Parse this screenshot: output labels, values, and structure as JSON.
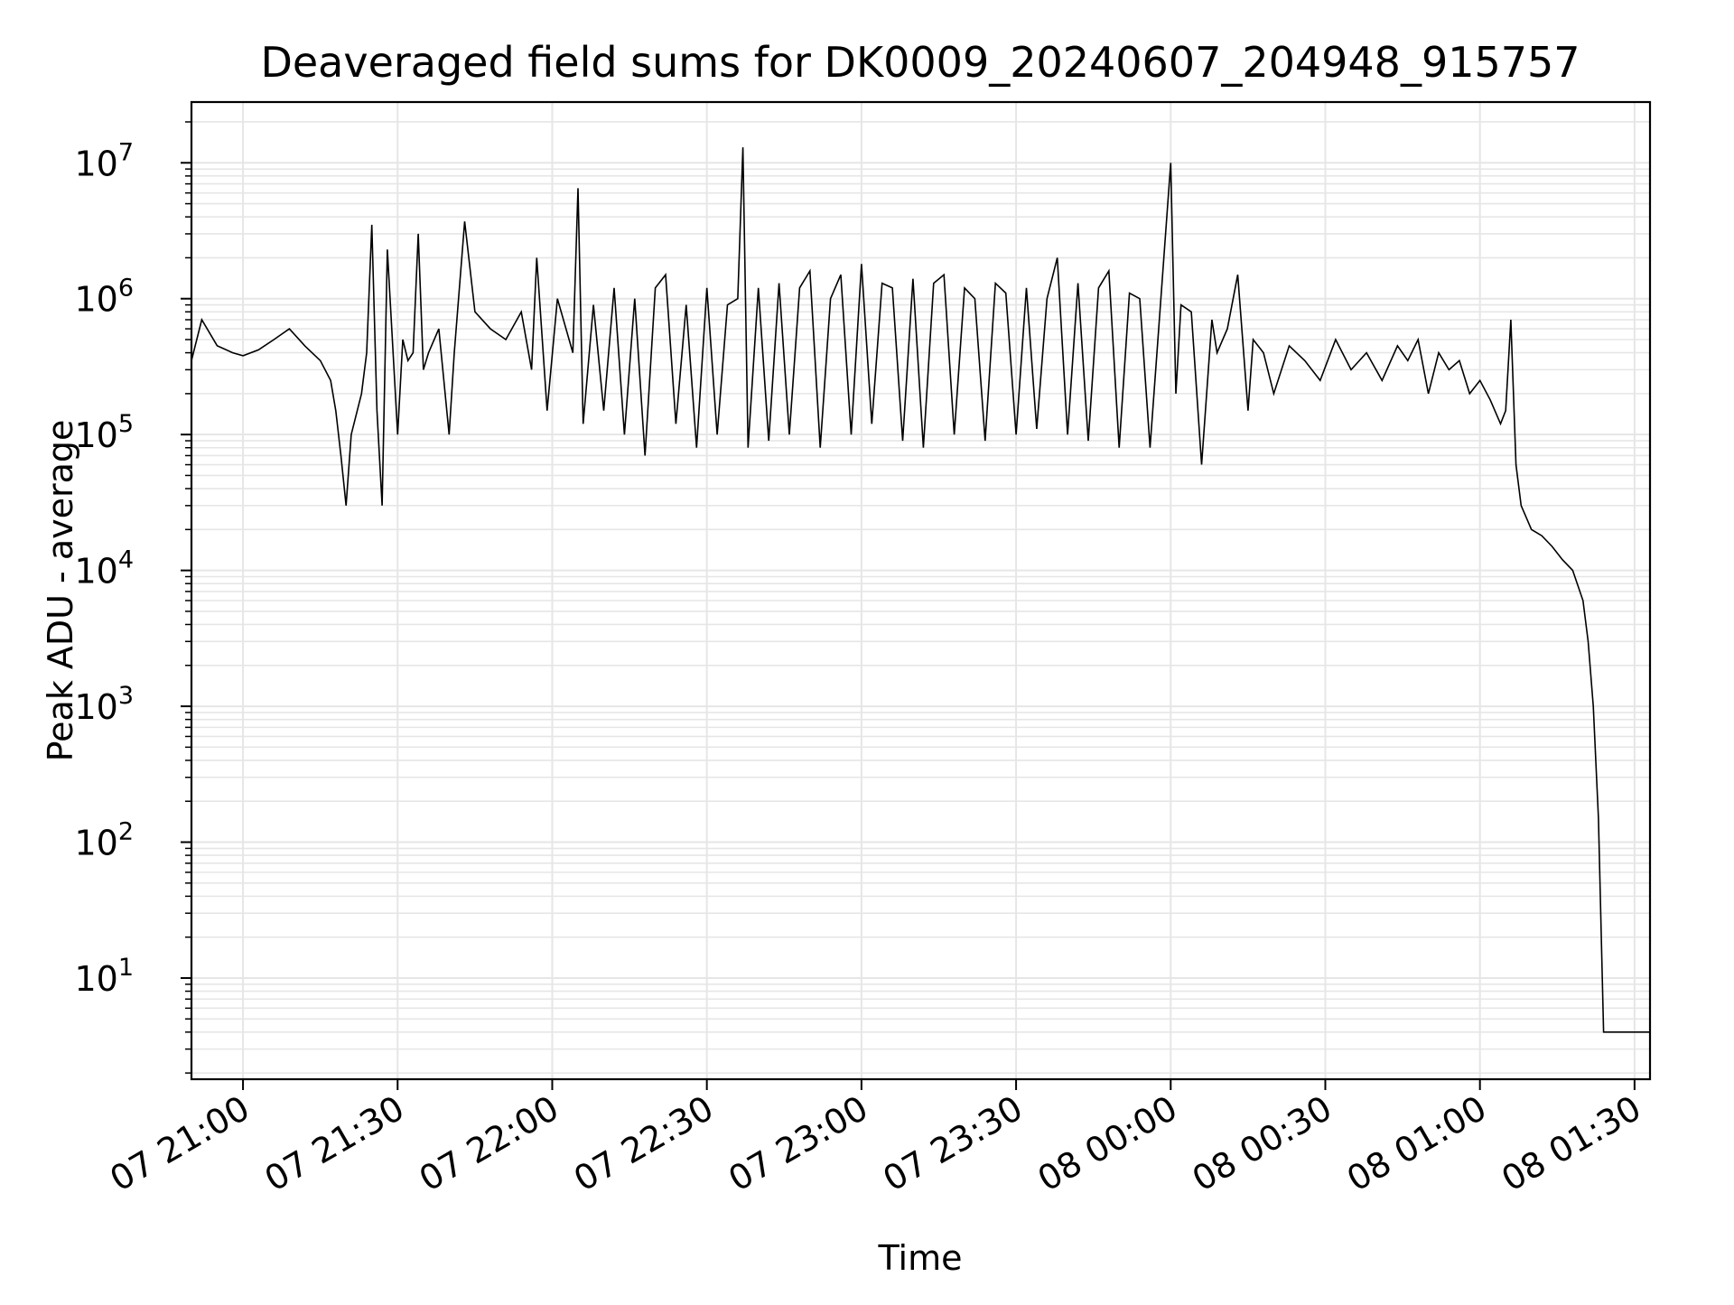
{
  "chart_data": {
    "type": "line",
    "title": "Deaveraged field sums for DK0009_20240607_204948_915757",
    "xlabel": "Time",
    "ylabel": "Peak ADU - average",
    "yscale": "log",
    "grid": true,
    "x_tick_labels": [
      "07 21:00",
      "07 21:30",
      "07 22:00",
      "07 22:30",
      "07 23:00",
      "07 23:30",
      "08 00:00",
      "08 00:30",
      "08 01:00",
      "08 01:30"
    ],
    "y_tick_labels": [
      {
        "base": "10",
        "exp": "1"
      },
      {
        "base": "10",
        "exp": "2"
      },
      {
        "base": "10",
        "exp": "3"
      },
      {
        "base": "10",
        "exp": "4"
      },
      {
        "base": "10",
        "exp": "5"
      },
      {
        "base": "10",
        "exp": "6"
      },
      {
        "base": "10",
        "exp": "7"
      }
    ],
    "xlim": [
      "2024-06-07 20:50",
      "2024-06-08 01:33"
    ],
    "ylim": [
      1.8,
      28000000
    ],
    "line_color": "#000000",
    "series": [
      {
        "x": [
          "2024-06-07 20:50",
          "2024-06-07 20:52",
          "2024-06-07 20:55",
          "2024-06-07 20:58",
          "2024-06-07 21:00",
          "2024-06-07 21:03",
          "2024-06-07 21:06",
          "2024-06-07 21:09",
          "2024-06-07 21:12",
          "2024-06-07 21:15",
          "2024-06-07 21:17",
          "2024-06-07 21:18",
          "2024-06-07 21:19",
          "2024-06-07 21:20",
          "2024-06-07 21:21",
          "2024-06-07 21:23",
          "2024-06-07 21:24",
          "2024-06-07 21:25",
          "2024-06-07 21:26",
          "2024-06-07 21:27",
          "2024-06-07 21:28",
          "2024-06-07 21:30",
          "2024-06-07 21:31",
          "2024-06-07 21:32",
          "2024-06-07 21:33",
          "2024-06-07 21:34",
          "2024-06-07 21:35",
          "2024-06-07 21:36",
          "2024-06-07 21:38",
          "2024-06-07 21:40",
          "2024-06-07 21:41",
          "2024-06-07 21:43",
          "2024-06-07 21:45",
          "2024-06-07 21:48",
          "2024-06-07 21:51",
          "2024-06-07 21:54",
          "2024-06-07 21:56",
          "2024-06-07 21:57",
          "2024-06-07 21:59",
          "2024-06-07 22:01",
          "2024-06-07 22:04",
          "2024-06-07 22:05",
          "2024-06-07 22:06",
          "2024-06-07 22:08",
          "2024-06-07 22:10",
          "2024-06-07 22:12",
          "2024-06-07 22:14",
          "2024-06-07 22:16",
          "2024-06-07 22:18",
          "2024-06-07 22:20",
          "2024-06-07 22:22",
          "2024-06-07 22:24",
          "2024-06-07 22:26",
          "2024-06-07 22:28",
          "2024-06-07 22:30",
          "2024-06-07 22:32",
          "2024-06-07 22:34",
          "2024-06-07 22:36",
          "2024-06-07 22:37",
          "2024-06-07 22:38",
          "2024-06-07 22:40",
          "2024-06-07 22:42",
          "2024-06-07 22:44",
          "2024-06-07 22:46",
          "2024-06-07 22:48",
          "2024-06-07 22:50",
          "2024-06-07 22:52",
          "2024-06-07 22:54",
          "2024-06-07 22:56",
          "2024-06-07 22:58",
          "2024-06-07 23:00",
          "2024-06-07 23:02",
          "2024-06-07 23:04",
          "2024-06-07 23:06",
          "2024-06-07 23:08",
          "2024-06-07 23:10",
          "2024-06-07 23:12",
          "2024-06-07 23:14",
          "2024-06-07 23:16",
          "2024-06-07 23:18",
          "2024-06-07 23:20",
          "2024-06-07 23:22",
          "2024-06-07 23:24",
          "2024-06-07 23:26",
          "2024-06-07 23:28",
          "2024-06-07 23:30",
          "2024-06-07 23:32",
          "2024-06-07 23:34",
          "2024-06-07 23:36",
          "2024-06-07 23:38",
          "2024-06-07 23:40",
          "2024-06-07 23:42",
          "2024-06-07 23:44",
          "2024-06-07 23:46",
          "2024-06-07 23:48",
          "2024-06-07 23:50",
          "2024-06-07 23:52",
          "2024-06-07 23:54",
          "2024-06-07 23:56",
          "2024-06-07 23:58",
          "2024-06-08 00:00",
          "2024-06-08 00:01",
          "2024-06-08 00:02",
          "2024-06-08 00:04",
          "2024-06-08 00:06",
          "2024-06-08 00:08",
          "2024-06-08 00:09",
          "2024-06-08 00:11",
          "2024-06-08 00:13",
          "2024-06-08 00:15",
          "2024-06-08 00:16",
          "2024-06-08 00:18",
          "2024-06-08 00:20",
          "2024-06-08 00:23",
          "2024-06-08 00:26",
          "2024-06-08 00:29",
          "2024-06-08 00:32",
          "2024-06-08 00:35",
          "2024-06-08 00:38",
          "2024-06-08 00:41",
          "2024-06-08 00:44",
          "2024-06-08 00:46",
          "2024-06-08 00:48",
          "2024-06-08 00:50",
          "2024-06-08 00:52",
          "2024-06-08 00:54",
          "2024-06-08 00:56",
          "2024-06-08 00:58",
          "2024-06-08 01:00",
          "2024-06-08 01:02",
          "2024-06-08 01:04",
          "2024-06-08 01:05",
          "2024-06-08 01:06",
          "2024-06-08 01:07",
          "2024-06-08 01:08",
          "2024-06-08 01:10",
          "2024-06-08 01:12",
          "2024-06-08 01:14",
          "2024-06-08 01:16",
          "2024-06-08 01:18",
          "2024-06-08 01:20",
          "2024-06-08 01:21",
          "2024-06-08 01:22",
          "2024-06-08 01:23",
          "2024-06-08 01:24",
          "2024-06-08 01:25",
          "2024-06-08 01:26",
          "2024-06-08 01:27",
          "2024-06-08 01:28",
          "2024-06-08 01:29",
          "2024-06-08 01:30",
          "2024-06-08 01:31",
          "2024-06-08 01:33"
        ],
        "y": [
          350000,
          700000,
          450000,
          400000,
          380000,
          420000,
          500000,
          600000,
          450000,
          350000,
          250000,
          150000,
          70000,
          30000,
          100000,
          200000,
          400000,
          3500000,
          150000,
          30000,
          2300000,
          100000,
          500000,
          350000,
          400000,
          3000000,
          300000,
          400000,
          600000,
          100000,
          400000,
          3700000,
          800000,
          600000,
          500000,
          800000,
          300000,
          2000000,
          150000,
          1000000,
          400000,
          6500000,
          120000,
          900000,
          150000,
          1200000,
          100000,
          1000000,
          70000,
          1200000,
          1500000,
          120000,
          900000,
          80000,
          1200000,
          100000,
          900000,
          1000000,
          13000000,
          80000,
          1200000,
          90000,
          1300000,
          100000,
          1200000,
          1600000,
          80000,
          1000000,
          1500000,
          100000,
          1800000,
          120000,
          1300000,
          1200000,
          90000,
          1400000,
          80000,
          1300000,
          1500000,
          100000,
          1200000,
          1000000,
          90000,
          1300000,
          1100000,
          100000,
          1200000,
          110000,
          1000000,
          2000000,
          100000,
          1300000,
          90000,
          1200000,
          1600000,
          80000,
          1100000,
          1000000,
          80000,
          900000,
          10000000,
          200000,
          900000,
          800000,
          60000,
          700000,
          400000,
          600000,
          1500000,
          150000,
          500000,
          400000,
          200000,
          450000,
          350000,
          250000,
          500000,
          300000,
          400000,
          250000,
          450000,
          350000,
          500000,
          200000,
          400000,
          300000,
          350000,
          200000,
          250000,
          180000,
          120000,
          150000,
          700000,
          60000,
          30000,
          20000,
          18000,
          15000,
          12000,
          10000,
          6000,
          3000,
          1000,
          150,
          4,
          4,
          4,
          4,
          4,
          4,
          4,
          4,
          4
        ]
      }
    ]
  }
}
